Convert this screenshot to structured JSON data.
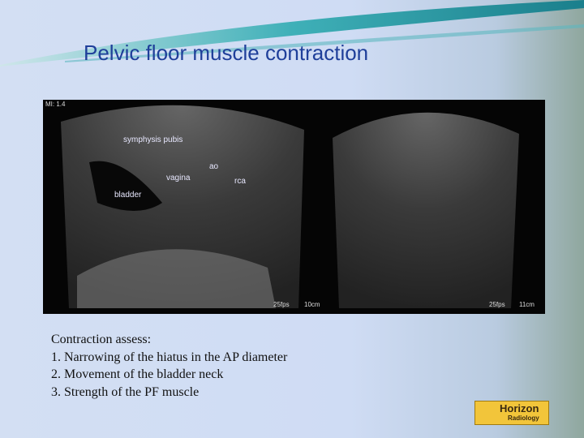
{
  "header": {
    "title": "Pelvic floor muscle contraction"
  },
  "image": {
    "left_panel": {
      "index": "MI: 1.4",
      "labels": [
        "symphysis pubis",
        "ao",
        "vagina",
        "rca",
        "bladder"
      ],
      "frame_rate": "25fps",
      "depth": "10cm"
    },
    "right_panel": {
      "frame_rate": "25fps",
      "depth": "11cm"
    }
  },
  "body": {
    "lines": [
      "Contraction assess:",
      "1. Narrowing of the hiatus in the AP diameter",
      "2. Movement of the bladder neck",
      "3. Strength of the PF muscle"
    ]
  },
  "logo": {
    "name": "Horizon",
    "subtitle": "Radiology"
  }
}
